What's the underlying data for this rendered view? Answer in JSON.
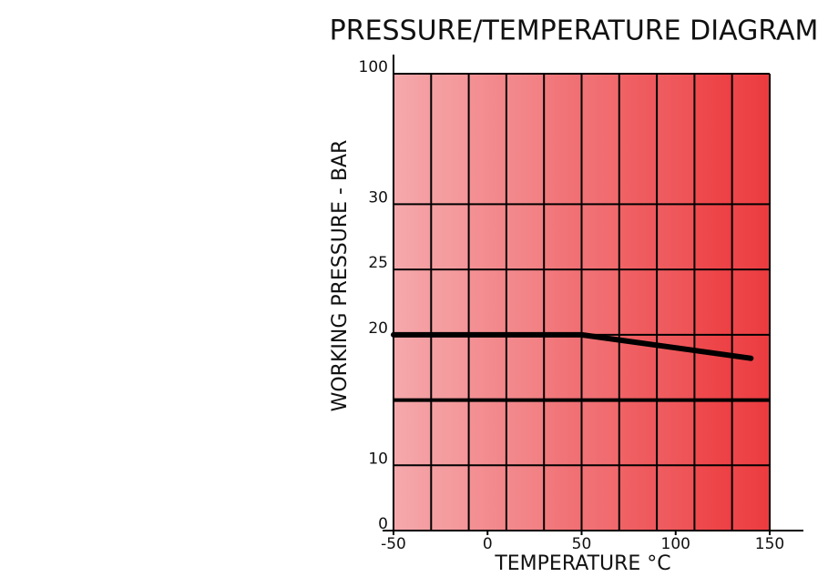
{
  "chart_data": {
    "type": "line",
    "title": "PRESSURE/TEMPERATURE DIAGRAM",
    "x_label": "TEMPERATURE °C",
    "y_label": "WORKING PRESSURE - BAR",
    "x": [
      -50,
      50,
      140
    ],
    "series": [
      {
        "name": "Working pressure",
        "color": "#000000",
        "values": [
          20,
          20,
          18.2
        ]
      }
    ],
    "xlim": [
      -50,
      150
    ],
    "xticks": [
      -50,
      0,
      50,
      100,
      150
    ],
    "ylim": [
      0,
      100
    ],
    "yticks": [
      0,
      10,
      20,
      25,
      30,
      100
    ],
    "reference_line": 15,
    "grid": true
  }
}
